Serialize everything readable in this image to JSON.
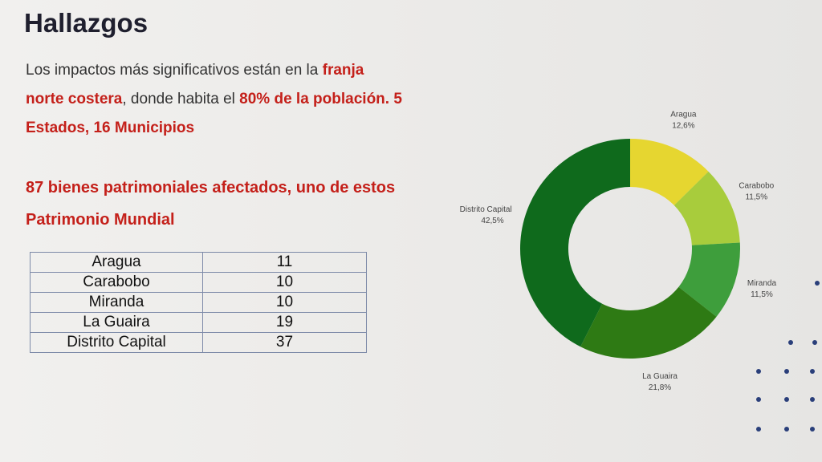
{
  "header": {
    "title": "Hallazgos"
  },
  "intro": [
    "Los impactos más significativos están en la ",
    "franja norte costera",
    ", donde habita el ",
    "80% de la población. 5 Estados, 16 Municipios"
  ],
  "highlight": "87 bienes patrimoniales afectados, uno de estos Patrimonio Mundial",
  "table": {
    "rows": [
      [
        "Aragua",
        11
      ],
      [
        "Carabobo",
        10
      ],
      [
        "Miranda",
        10
      ],
      [
        "La Guaira",
        19
      ],
      [
        "Distrito Capital",
        37
      ]
    ]
  },
  "chart_data": {
    "type": "donut",
    "categories": [
      "Aragua",
      "Carabobo",
      "Miranda",
      "La Guaira",
      "Distrito Capital"
    ],
    "values": [
      12.6,
      11.5,
      11.5,
      21.8,
      42.5
    ],
    "value_labels": [
      "12,6%",
      "11,5%",
      "11,5%",
      "21,8%",
      "42,5%"
    ],
    "colors": [
      "#e6d630",
      "#a8cc3c",
      "#3e9e3c",
      "#2e7a14",
      "#0f6a1c"
    ]
  }
}
